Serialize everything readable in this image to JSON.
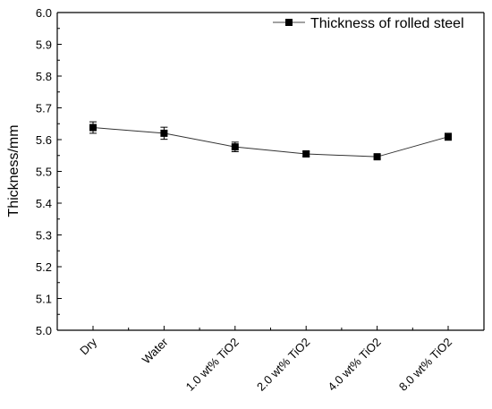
{
  "chart_data": {
    "type": "line",
    "title": "",
    "xlabel": "",
    "ylabel": "Thickness/mm",
    "categories": [
      "Dry",
      "Water",
      "1.0 wt% TiO2",
      "2.0 wt% TiO2",
      "4.0 wt% TiO2",
      "8.0 wt% TiO2"
    ],
    "series": [
      {
        "name": "Thickness of rolled steel",
        "values": [
          5.638,
          5.62,
          5.577,
          5.555,
          5.546,
          5.609
        ],
        "errors": [
          0.018,
          0.019,
          0.015,
          0.008,
          0.006,
          0.011
        ],
        "color": "#000000",
        "marker": "square"
      }
    ],
    "ylim": [
      5.0,
      6.0
    ],
    "yticks": [
      "5.0",
      "5.1",
      "5.2",
      "5.3",
      "5.4",
      "5.5",
      "5.6",
      "5.7",
      "5.8",
      "5.9",
      "6.0"
    ],
    "grid": false,
    "legend": "top-right"
  }
}
